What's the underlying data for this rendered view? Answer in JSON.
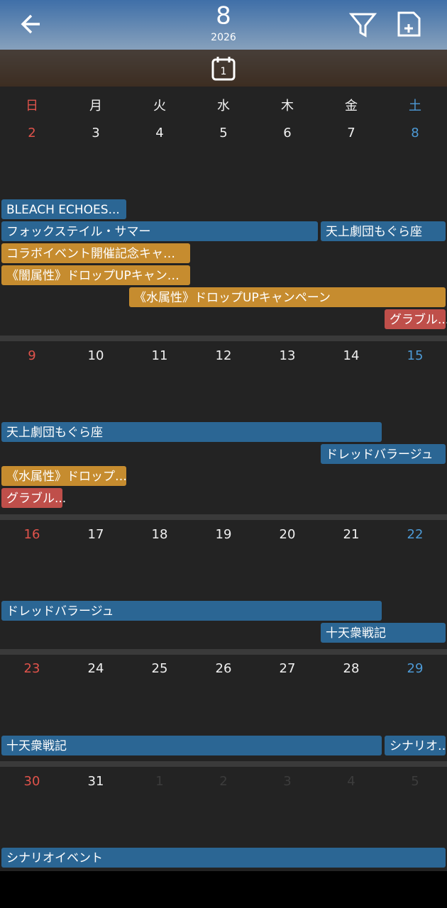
{
  "header": {
    "month": "8",
    "year": "2026",
    "today": "1"
  },
  "weekdays": [
    "日",
    "月",
    "火",
    "水",
    "木",
    "金",
    "土"
  ],
  "weeks": [
    {
      "days": [
        "2",
        "3",
        "4",
        "5",
        "6",
        "7",
        "8"
      ],
      "events": [
        "BLEACH ECHOES...",
        "フォックステイル・サマー",
        "天上劇団もぐら座",
        "コラボイベント開催記念キャ…",
        "《闇属性》ドロップUPキャン…",
        "《水属性》ドロップUPキャンペーン",
        "グラブル..."
      ]
    },
    {
      "days": [
        "9",
        "10",
        "11",
        "12",
        "13",
        "14",
        "15"
      ],
      "events": [
        "天上劇団もぐら座",
        "ドレッドバラージュ",
        "《水属性》ドロップ…",
        "グラブル..."
      ]
    },
    {
      "days": [
        "16",
        "17",
        "18",
        "19",
        "20",
        "21",
        "22"
      ],
      "events": [
        "ドレッドバラージュ",
        "十天衆戦記"
      ]
    },
    {
      "days": [
        "23",
        "24",
        "25",
        "26",
        "27",
        "28",
        "29"
      ],
      "events": [
        "十天衆戦記",
        "シナリオ…"
      ]
    },
    {
      "days": [
        "30",
        "31",
        "1",
        "2",
        "3",
        "4",
        "5"
      ],
      "events": [
        "シナリオイベント"
      ]
    }
  ]
}
